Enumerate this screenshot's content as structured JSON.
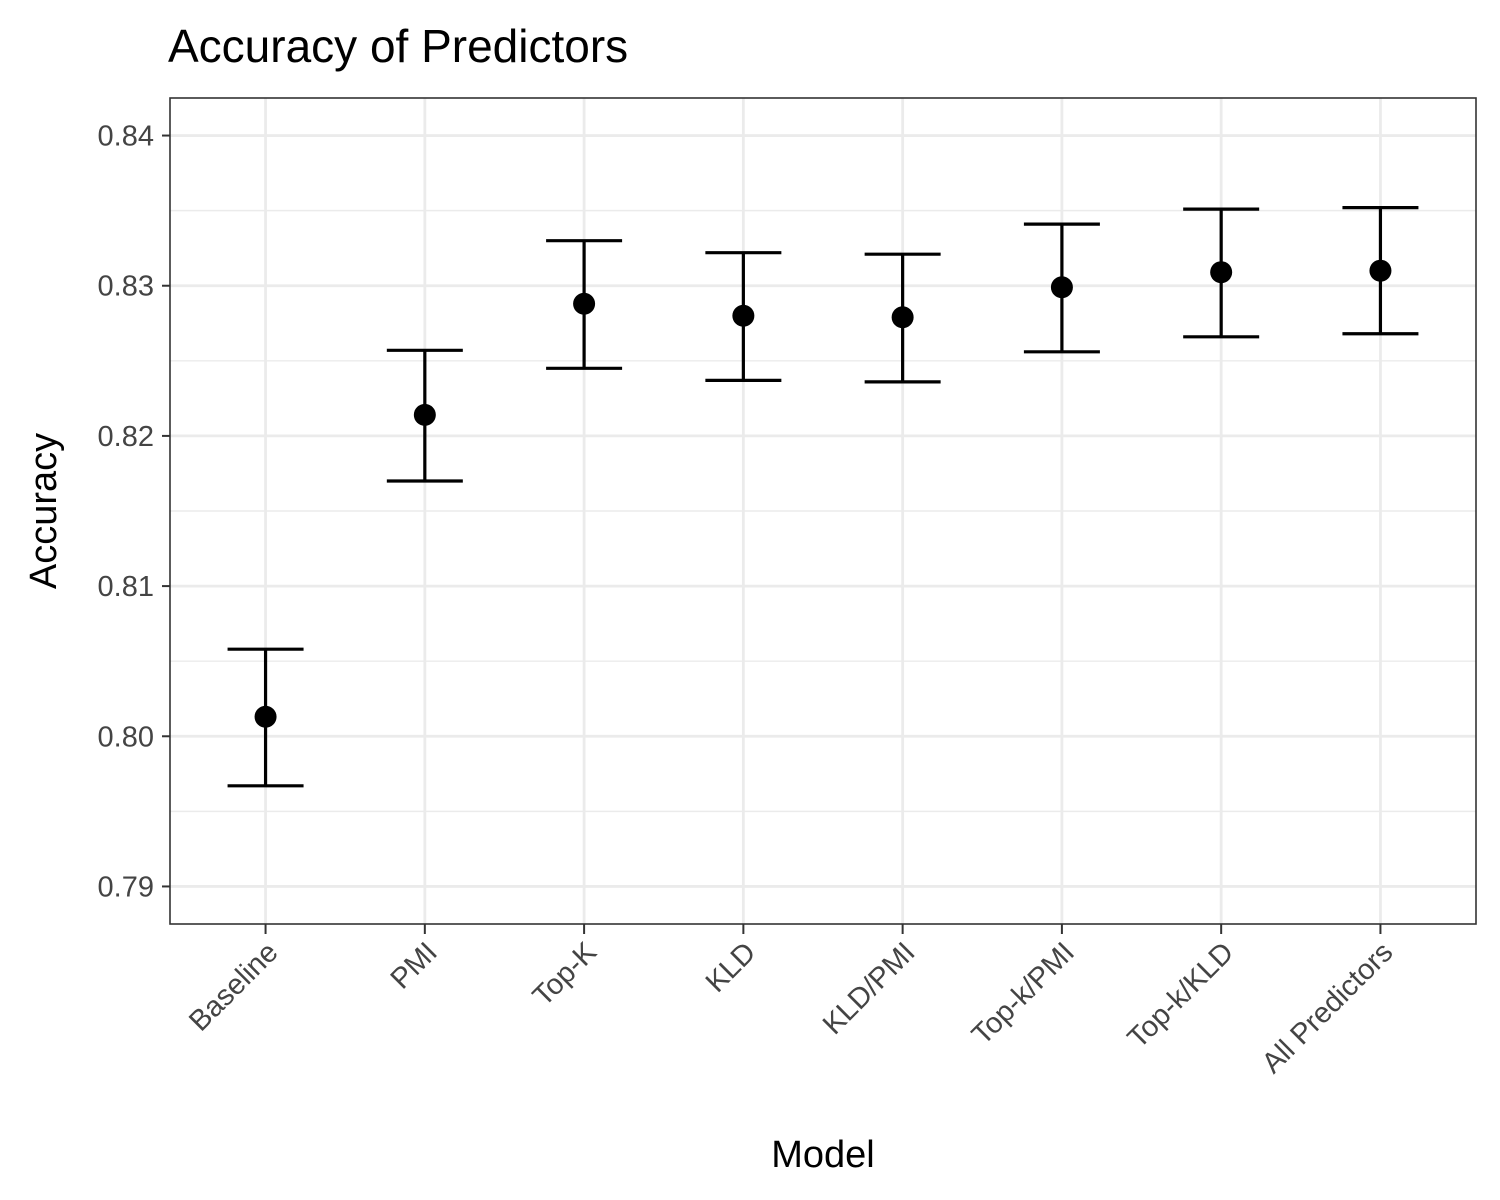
{
  "chart_data": {
    "type": "scatter",
    "title": "Accuracy of Predictors",
    "xlabel": "Model",
    "ylabel": "Accuracy",
    "categories": [
      "Baseline",
      "PMI",
      "Top-K",
      "KLD",
      "KLD/PMI",
      "Top-k/PMI",
      "Top-k/KLD",
      "All Predictors"
    ],
    "series": [
      {
        "values": [
          0.8013,
          0.8214,
          0.8288,
          0.828,
          0.8279,
          0.8299,
          0.8309,
          0.831
        ],
        "lower": [
          0.7967,
          0.817,
          0.8245,
          0.8237,
          0.8236,
          0.8256,
          0.8266,
          0.8268
        ],
        "upper": [
          0.8058,
          0.8257,
          0.833,
          0.8322,
          0.8321,
          0.8341,
          0.8351,
          0.8352
        ]
      }
    ],
    "yticks": [
      "0.79",
      "0.80",
      "0.81",
      "0.82",
      "0.83",
      "0.84"
    ],
    "ylim": [
      0.7875,
      0.8425
    ],
    "grid": true,
    "legend": "none",
    "colors": {
      "point": "#000000",
      "grid": "#ebebeb",
      "panel_border": "#333333",
      "tick_text": "#444444"
    }
  }
}
